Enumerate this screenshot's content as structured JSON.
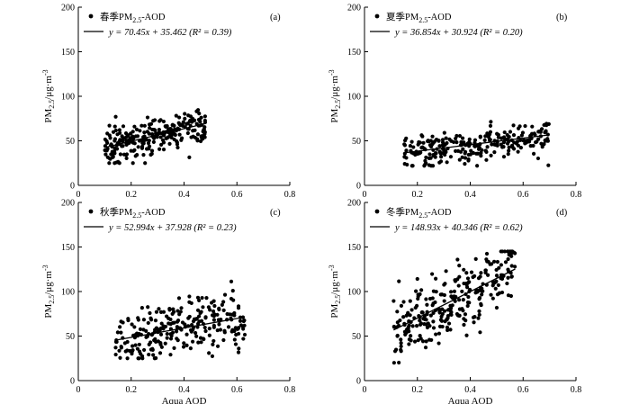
{
  "chart_data": [
    {
      "type": "scatter",
      "panel_label": "(a)",
      "legend": {
        "series_label": "春季PM",
        "series_sub": "2.5",
        "series_suffix": "-AOD",
        "fit_label": "y = 70.45x + 35.462   (R² = 0.39)"
      },
      "fit": {
        "slope": 70.45,
        "intercept": 35.462,
        "x_range": [
          0.1,
          0.48
        ]
      },
      "xlim": [
        0,
        0.8
      ],
      "ylim": [
        0,
        200
      ],
      "xticks": [
        "0",
        "0.2",
        "0.4",
        "0.6",
        "0.8"
      ],
      "yticks": [
        "0",
        "50",
        "100",
        "150",
        "200"
      ],
      "xlabel": "",
      "ylabel": {
        "pre": "PM",
        "sub": "2.5",
        "post": "/μg·m",
        "sup": "-3"
      },
      "points": {
        "x_range": [
          0.1,
          0.48
        ],
        "y_range": [
          25,
          85
        ],
        "n": 260,
        "note_center": "spread around fit"
      }
    },
    {
      "type": "scatter",
      "panel_label": "(b)",
      "legend": {
        "series_label": "夏季PM",
        "series_sub": "2.5",
        "series_suffix": "-AOD",
        "fit_label": "y = 36.854x + 30.924   (R² = 0.20)"
      },
      "fit": {
        "slope": 36.854,
        "intercept": 30.924,
        "x_range": [
          0.15,
          0.7
        ]
      },
      "xlim": [
        0,
        0.8
      ],
      "ylim": [
        0,
        200
      ],
      "xticks": [
        "0",
        "0.2",
        "0.4",
        "0.6",
        "0.8"
      ],
      "yticks": [
        "0",
        "50",
        "100",
        "150",
        "200"
      ],
      "xlabel": "",
      "ylabel": {
        "pre": "PM",
        "sub": "2.5",
        "post": "/μg·m",
        "sup": "-3"
      },
      "points": {
        "x_range": [
          0.15,
          0.7
        ],
        "y_range": [
          22,
          82
        ],
        "n": 260,
        "note_center": "spread around fit"
      }
    },
    {
      "type": "scatter",
      "panel_label": "(c)",
      "legend": {
        "series_label": "秋季PM",
        "series_sub": "2.5",
        "series_suffix": "-AOD",
        "fit_label": "y = 52.994x + 37.928   (R² = 0.23)"
      },
      "fit": {
        "slope": 52.994,
        "intercept": 37.928,
        "x_range": [
          0.14,
          0.63
        ]
      },
      "xlim": [
        0,
        0.8
      ],
      "ylim": [
        0,
        200
      ],
      "xticks": [
        "0",
        "0.2",
        "0.4",
        "0.6",
        "0.8"
      ],
      "yticks": [
        "0",
        "50",
        "100",
        "150",
        "200"
      ],
      "xlabel": "Aqua AOD",
      "ylabel": {
        "pre": "PM",
        "sub": "2.5",
        "post": "/μg·m",
        "sup": "-3"
      },
      "points": {
        "x_range": [
          0.14,
          0.63
        ],
        "y_range": [
          25,
          127
        ],
        "n": 260,
        "note_center": "spread around fit"
      }
    },
    {
      "type": "scatter",
      "panel_label": "(d)",
      "legend": {
        "series_label": "冬季PM",
        "series_sub": "2.5",
        "series_suffix": "-AOD",
        "fit_label": "y = 148.93x + 40.346   (R² = 0.62)"
      },
      "fit": {
        "slope": 148.93,
        "intercept": 40.346,
        "x_range": [
          0.11,
          0.57
        ]
      },
      "xlim": [
        0,
        0.8
      ],
      "ylim": [
        0,
        200
      ],
      "xticks": [
        "0",
        "0.2",
        "0.4",
        "0.6",
        "0.8"
      ],
      "yticks": [
        "0",
        "50",
        "100",
        "150",
        "200"
      ],
      "xlabel": "Aqua AOD",
      "ylabel": {
        "pre": "PM",
        "sub": "2.5",
        "post": "/μg·m",
        "sup": "-3"
      },
      "points": {
        "x_range": [
          0.11,
          0.57
        ],
        "y_range": [
          20,
          145
        ],
        "n": 280,
        "note_center": "spread around fit"
      }
    }
  ]
}
